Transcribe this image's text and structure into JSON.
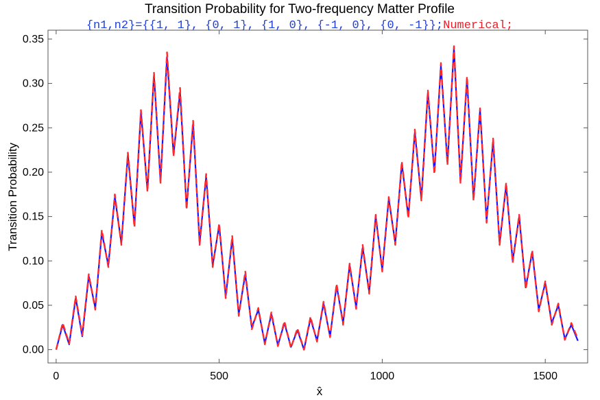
{
  "chart_data": {
    "type": "line",
    "title": "Transition Probability for Two-frequency Matter Profile",
    "subtitle": {
      "prefix": "{n1,n2}={{1, 1}, {0, 1}, {1, 0}, {-1, 0}, {0, -1}};",
      "prefix_color": "#1f3fd8",
      "suffix": "Numerical;",
      "suffix_color": "#e8202a"
    },
    "xlabel": "x̂",
    "ylabel": "Transition Probability",
    "xlim": [
      -25,
      1630
    ],
    "ylim": [
      -0.015,
      0.36
    ],
    "xticks": [
      0,
      500,
      1000,
      1500
    ],
    "yticks": [
      0.0,
      0.05,
      0.1,
      0.15,
      0.2,
      0.25,
      0.3,
      0.35
    ],
    "ytick_labels": [
      "0.00",
      "0.05",
      "0.10",
      "0.15",
      "0.20",
      "0.25",
      "0.30",
      "0.35"
    ],
    "grid": false,
    "series": [
      {
        "color": "#1414ff",
        "style": "solid",
        "x": [
          0,
          20,
          40,
          60,
          80,
          100,
          120,
          140,
          160,
          180,
          200,
          220,
          240,
          260,
          280,
          300,
          320,
          340,
          360,
          380,
          400,
          420,
          440,
          460,
          480,
          500,
          520,
          540,
          560,
          580,
          600,
          620,
          640,
          660,
          680,
          700,
          720,
          740,
          760,
          780,
          800,
          820,
          840,
          860,
          880,
          900,
          920,
          940,
          960,
          980,
          1000,
          1020,
          1040,
          1060,
          1080,
          1100,
          1120,
          1140,
          1160,
          1180,
          1200,
          1220,
          1240,
          1260,
          1280,
          1300,
          1320,
          1340,
          1360,
          1380,
          1400,
          1420,
          1440,
          1460,
          1480,
          1500,
          1520,
          1540,
          1560,
          1580,
          1600
        ],
        "y": [
          0.0,
          0.028,
          0.006,
          0.058,
          0.015,
          0.083,
          0.047,
          0.132,
          0.095,
          0.172,
          0.12,
          0.22,
          0.14,
          0.268,
          0.18,
          0.31,
          0.19,
          0.33,
          0.22,
          0.29,
          0.16,
          0.255,
          0.12,
          0.195,
          0.095,
          0.14,
          0.06,
          0.125,
          0.04,
          0.085,
          0.025,
          0.045,
          0.007,
          0.04,
          0.005,
          0.03,
          0.003,
          0.022,
          0.0,
          0.035,
          0.01,
          0.052,
          0.015,
          0.072,
          0.03,
          0.095,
          0.048,
          0.115,
          0.065,
          0.15,
          0.09,
          0.17,
          0.12,
          0.21,
          0.15,
          0.245,
          0.17,
          0.29,
          0.2,
          0.32,
          0.21,
          0.34,
          0.19,
          0.305,
          0.17,
          0.27,
          0.145,
          0.235,
          0.12,
          0.185,
          0.1,
          0.15,
          0.07,
          0.11,
          0.045,
          0.075,
          0.03,
          0.05,
          0.012,
          0.028,
          0.01
        ]
      },
      {
        "color": "#ff2a2a",
        "style": "dashed",
        "x": [
          0,
          20,
          40,
          60,
          80,
          100,
          120,
          140,
          160,
          180,
          200,
          220,
          240,
          260,
          280,
          300,
          320,
          340,
          360,
          380,
          400,
          420,
          440,
          460,
          480,
          500,
          520,
          540,
          560,
          580,
          600,
          620,
          640,
          660,
          680,
          700,
          720,
          740,
          760,
          780,
          800,
          820,
          840,
          860,
          880,
          900,
          920,
          940,
          960,
          980,
          1000,
          1020,
          1040,
          1060,
          1080,
          1100,
          1120,
          1140,
          1160,
          1180,
          1200,
          1220,
          1240,
          1260,
          1280,
          1300,
          1320,
          1340,
          1360,
          1380,
          1400,
          1420,
          1440,
          1460,
          1480,
          1500,
          1520,
          1540,
          1560,
          1580,
          1600
        ],
        "y": [
          0.0,
          0.03,
          0.007,
          0.06,
          0.016,
          0.085,
          0.045,
          0.135,
          0.093,
          0.175,
          0.118,
          0.222,
          0.138,
          0.27,
          0.178,
          0.312,
          0.188,
          0.335,
          0.218,
          0.295,
          0.158,
          0.258,
          0.118,
          0.198,
          0.093,
          0.142,
          0.058,
          0.128,
          0.038,
          0.088,
          0.023,
          0.047,
          0.006,
          0.042,
          0.004,
          0.032,
          0.002,
          0.024,
          0.0,
          0.037,
          0.009,
          0.054,
          0.014,
          0.074,
          0.028,
          0.097,
          0.046,
          0.118,
          0.063,
          0.152,
          0.088,
          0.172,
          0.118,
          0.212,
          0.148,
          0.248,
          0.168,
          0.292,
          0.198,
          0.323,
          0.208,
          0.342,
          0.188,
          0.308,
          0.168,
          0.272,
          0.143,
          0.238,
          0.118,
          0.188,
          0.098,
          0.152,
          0.068,
          0.112,
          0.043,
          0.077,
          0.028,
          0.052,
          0.011,
          0.03,
          0.012
        ]
      }
    ]
  }
}
